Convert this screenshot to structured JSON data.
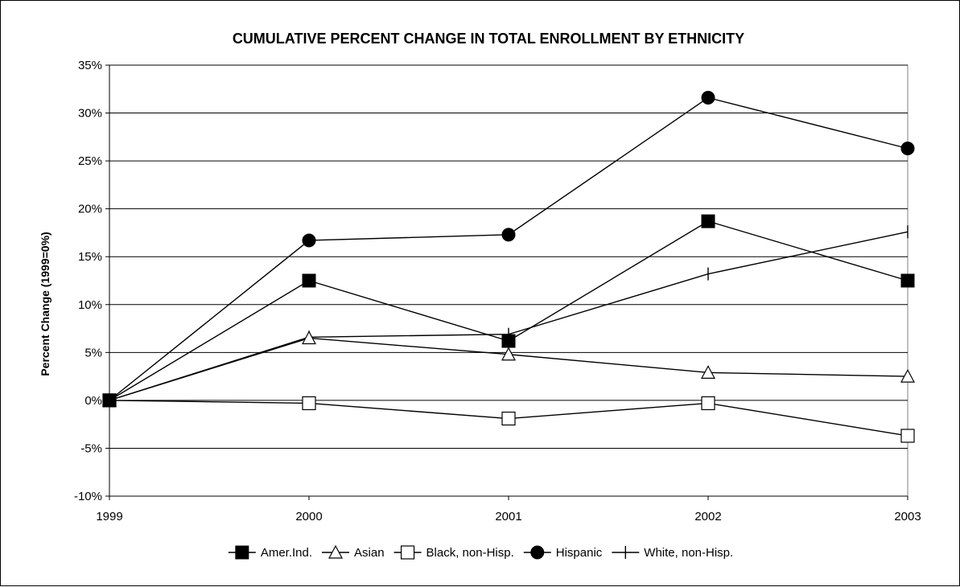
{
  "chart_data": {
    "type": "line",
    "title": "CUMULATIVE PERCENT CHANGE IN TOTAL ENROLLMENT BY ETHNICITY",
    "xlabel": "",
    "ylabel": "Percent Change (1999=0%)",
    "categories": [
      "1999",
      "2000",
      "2001",
      "2002",
      "2003"
    ],
    "ylim": [
      -10,
      35
    ],
    "ytick_step": 5,
    "ytick_format": "%",
    "grid": true,
    "legend_position": "bottom",
    "series": [
      {
        "name": "Amer.Ind.",
        "marker": "filled-square",
        "values": [
          0,
          12.5,
          6.2,
          18.7,
          12.5
        ]
      },
      {
        "name": "Asian",
        "marker": "open-triangle",
        "values": [
          0,
          6.5,
          4.8,
          2.9,
          2.5
        ]
      },
      {
        "name": "Black, non-Hisp.",
        "marker": "open-square",
        "values": [
          0,
          -0.3,
          -1.9,
          -0.3,
          -3.7
        ]
      },
      {
        "name": "Hispanic",
        "marker": "filled-circle",
        "values": [
          0,
          16.7,
          17.3,
          31.6,
          26.3
        ]
      },
      {
        "name": "White, non-Hisp.",
        "marker": "plus",
        "values": [
          0,
          6.6,
          6.9,
          13.2,
          17.6
        ]
      }
    ]
  }
}
